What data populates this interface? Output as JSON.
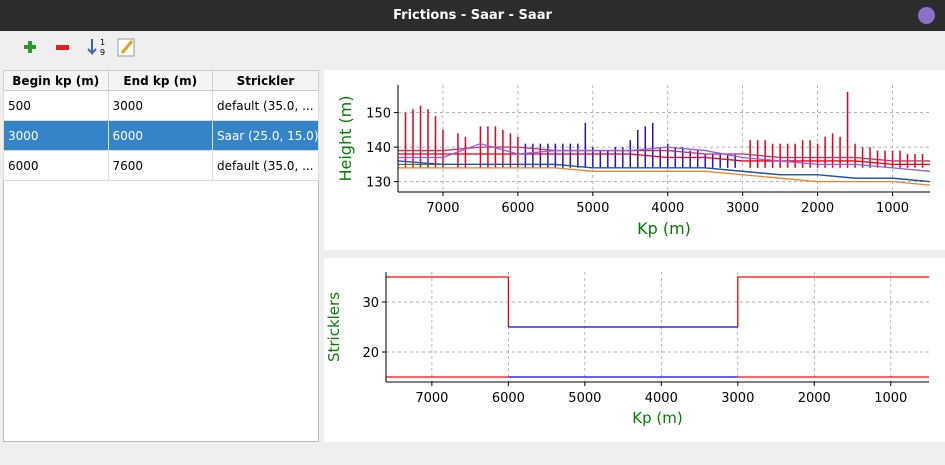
{
  "window": {
    "title": "Frictions - Saar - Saar"
  },
  "table": {
    "headers": [
      "Begin kp (m)",
      "End kp (m)",
      "Strickler"
    ],
    "rows": [
      [
        "500",
        "3000",
        "default (35.0, ..."
      ],
      [
        "3000",
        "6000",
        "Saar (25.0, 15.0)"
      ],
      [
        "6000",
        "7600",
        "default (35.0, ..."
      ]
    ],
    "selected_row": 1
  },
  "chart_data": [
    {
      "type": "line",
      "ylabel": "Height (m)",
      "xlabel": "Kp (m)",
      "xlim": [
        7600,
        500
      ],
      "ylim": [
        127,
        158
      ],
      "xticks": [
        7000,
        6000,
        5000,
        4000,
        3000,
        2000,
        1000
      ],
      "yticks": [
        130,
        140,
        150
      ],
      "grid": true,
      "series": [
        {
          "style": "stems",
          "color": "#e8001a",
          "base": 134,
          "x": [
            7500,
            7400,
            7300,
            7200,
            7100,
            7000,
            6800,
            6700,
            6500,
            6400,
            6300,
            6200,
            6100,
            6000,
            2900,
            2800,
            2700,
            2600,
            2500,
            2400,
            2300,
            2200,
            2100,
            2000,
            1900,
            1800,
            1700,
            1600,
            1500,
            1400,
            1300,
            1200,
            1100,
            1000,
            900,
            800,
            700,
            600
          ],
          "values": [
            150,
            151,
            152,
            151,
            149,
            145,
            144,
            143,
            146,
            146,
            146,
            145,
            144,
            143,
            142,
            142,
            142,
            141,
            141,
            141,
            141,
            142,
            142,
            141,
            143,
            144,
            143,
            156,
            141,
            140,
            140,
            139,
            139,
            139,
            139,
            138,
            138,
            138
          ]
        },
        {
          "style": "stems",
          "color": "#2a10c8",
          "base": 134,
          "x": [
            5900,
            5800,
            5700,
            5600,
            5500,
            5400,
            5300,
            5200,
            5100,
            5000,
            4900,
            4800,
            4700,
            4600,
            4500,
            4400,
            4300,
            4200,
            4100,
            4000,
            3900,
            3800,
            3700,
            3600,
            3500,
            3400,
            3300,
            3200,
            3100
          ],
          "values": [
            141,
            141,
            141,
            141,
            141,
            141,
            141,
            141,
            147,
            140,
            139,
            139,
            140,
            140,
            142,
            145,
            146,
            147,
            140,
            141,
            140,
            140,
            139,
            139,
            138,
            138,
            138,
            138,
            138
          ]
        },
        {
          "style": "line",
          "color": "#c8306a",
          "x": [
            7600,
            7000,
            6500,
            6000,
            5500,
            5000,
            4500,
            4000,
            3500,
            3000,
            2500,
            2000,
            1500,
            1000,
            500
          ],
          "values": [
            139,
            139,
            140,
            140,
            139,
            139,
            139,
            139,
            138,
            138,
            137,
            137,
            137,
            136,
            136
          ]
        },
        {
          "style": "line",
          "color": "#e8001a",
          "x": [
            7600,
            7000,
            6500,
            6000,
            5500,
            5000,
            4500,
            4000,
            3500,
            3000,
            2500,
            2000,
            1500,
            1000,
            500
          ],
          "values": [
            138,
            138,
            138,
            138,
            138,
            138,
            138,
            137,
            137,
            136,
            136,
            136,
            136,
            135,
            135
          ]
        },
        {
          "style": "line",
          "color": "#9060e0",
          "x": [
            7600,
            7000,
            6500,
            6000,
            5500,
            5000,
            4500,
            4000,
            3500,
            3000,
            2500,
            2000,
            1500,
            1000,
            500
          ],
          "values": [
            137,
            137,
            141,
            138,
            139,
            139,
            139,
            140,
            139,
            137,
            136,
            135,
            135,
            134,
            133
          ]
        },
        {
          "style": "line",
          "color": "#2a8a3a",
          "x": [
            7600,
            7000,
            6500,
            6000,
            5500,
            5000,
            4500,
            4000,
            3500,
            3000,
            2500,
            2000,
            1500,
            1000,
            500
          ],
          "values": [
            135,
            135,
            135,
            135,
            135,
            134,
            134,
            134,
            134,
            133,
            132,
            132,
            131,
            131,
            130
          ]
        },
        {
          "style": "line",
          "color": "#2050c0",
          "x": [
            7600,
            7000,
            6500,
            6000,
            5500,
            5000,
            4500,
            4000,
            3500,
            3000,
            2500,
            2000,
            1500,
            1000,
            500
          ],
          "values": [
            136,
            135,
            135,
            135,
            135,
            134,
            134,
            134,
            134,
            133,
            132,
            132,
            131,
            131,
            130
          ]
        },
        {
          "style": "line",
          "color": "#f08020",
          "x": [
            7600,
            7000,
            6500,
            6000,
            5500,
            5000,
            4500,
            4000,
            3500,
            3000,
            2500,
            2000,
            1500,
            1000,
            500
          ],
          "values": [
            134,
            134,
            134,
            134,
            134,
            133,
            133,
            133,
            133,
            132,
            131,
            130,
            130,
            130,
            129
          ]
        }
      ]
    },
    {
      "type": "line",
      "ylabel": "Stricklers",
      "xlabel": "Kp (m)",
      "xlim": [
        7600,
        500
      ],
      "ylim": [
        14,
        36
      ],
      "xticks": [
        7000,
        6000,
        5000,
        4000,
        3000,
        2000,
        1000
      ],
      "yticks": [
        20,
        30
      ],
      "grid": true,
      "series": [
        {
          "style": "line",
          "color": "#ff0000",
          "x": [
            7600,
            6000,
            6000
          ],
          "values": [
            35,
            35,
            25
          ]
        },
        {
          "style": "line",
          "color": "#0000ff",
          "x": [
            6000,
            3000
          ],
          "values": [
            25,
            25
          ]
        },
        {
          "style": "line",
          "color": "#ff0000",
          "x": [
            3000,
            3000,
            500
          ],
          "values": [
            25,
            35,
            35
          ]
        },
        {
          "style": "line",
          "color": "#ff0000",
          "x": [
            7600,
            6000
          ],
          "values": [
            15,
            15
          ]
        },
        {
          "style": "line",
          "color": "#0000ff",
          "x": [
            6000,
            3000
          ],
          "values": [
            15,
            15
          ]
        },
        {
          "style": "line",
          "color": "#ff0000",
          "x": [
            3000,
            500
          ],
          "values": [
            15,
            15
          ]
        }
      ]
    }
  ]
}
